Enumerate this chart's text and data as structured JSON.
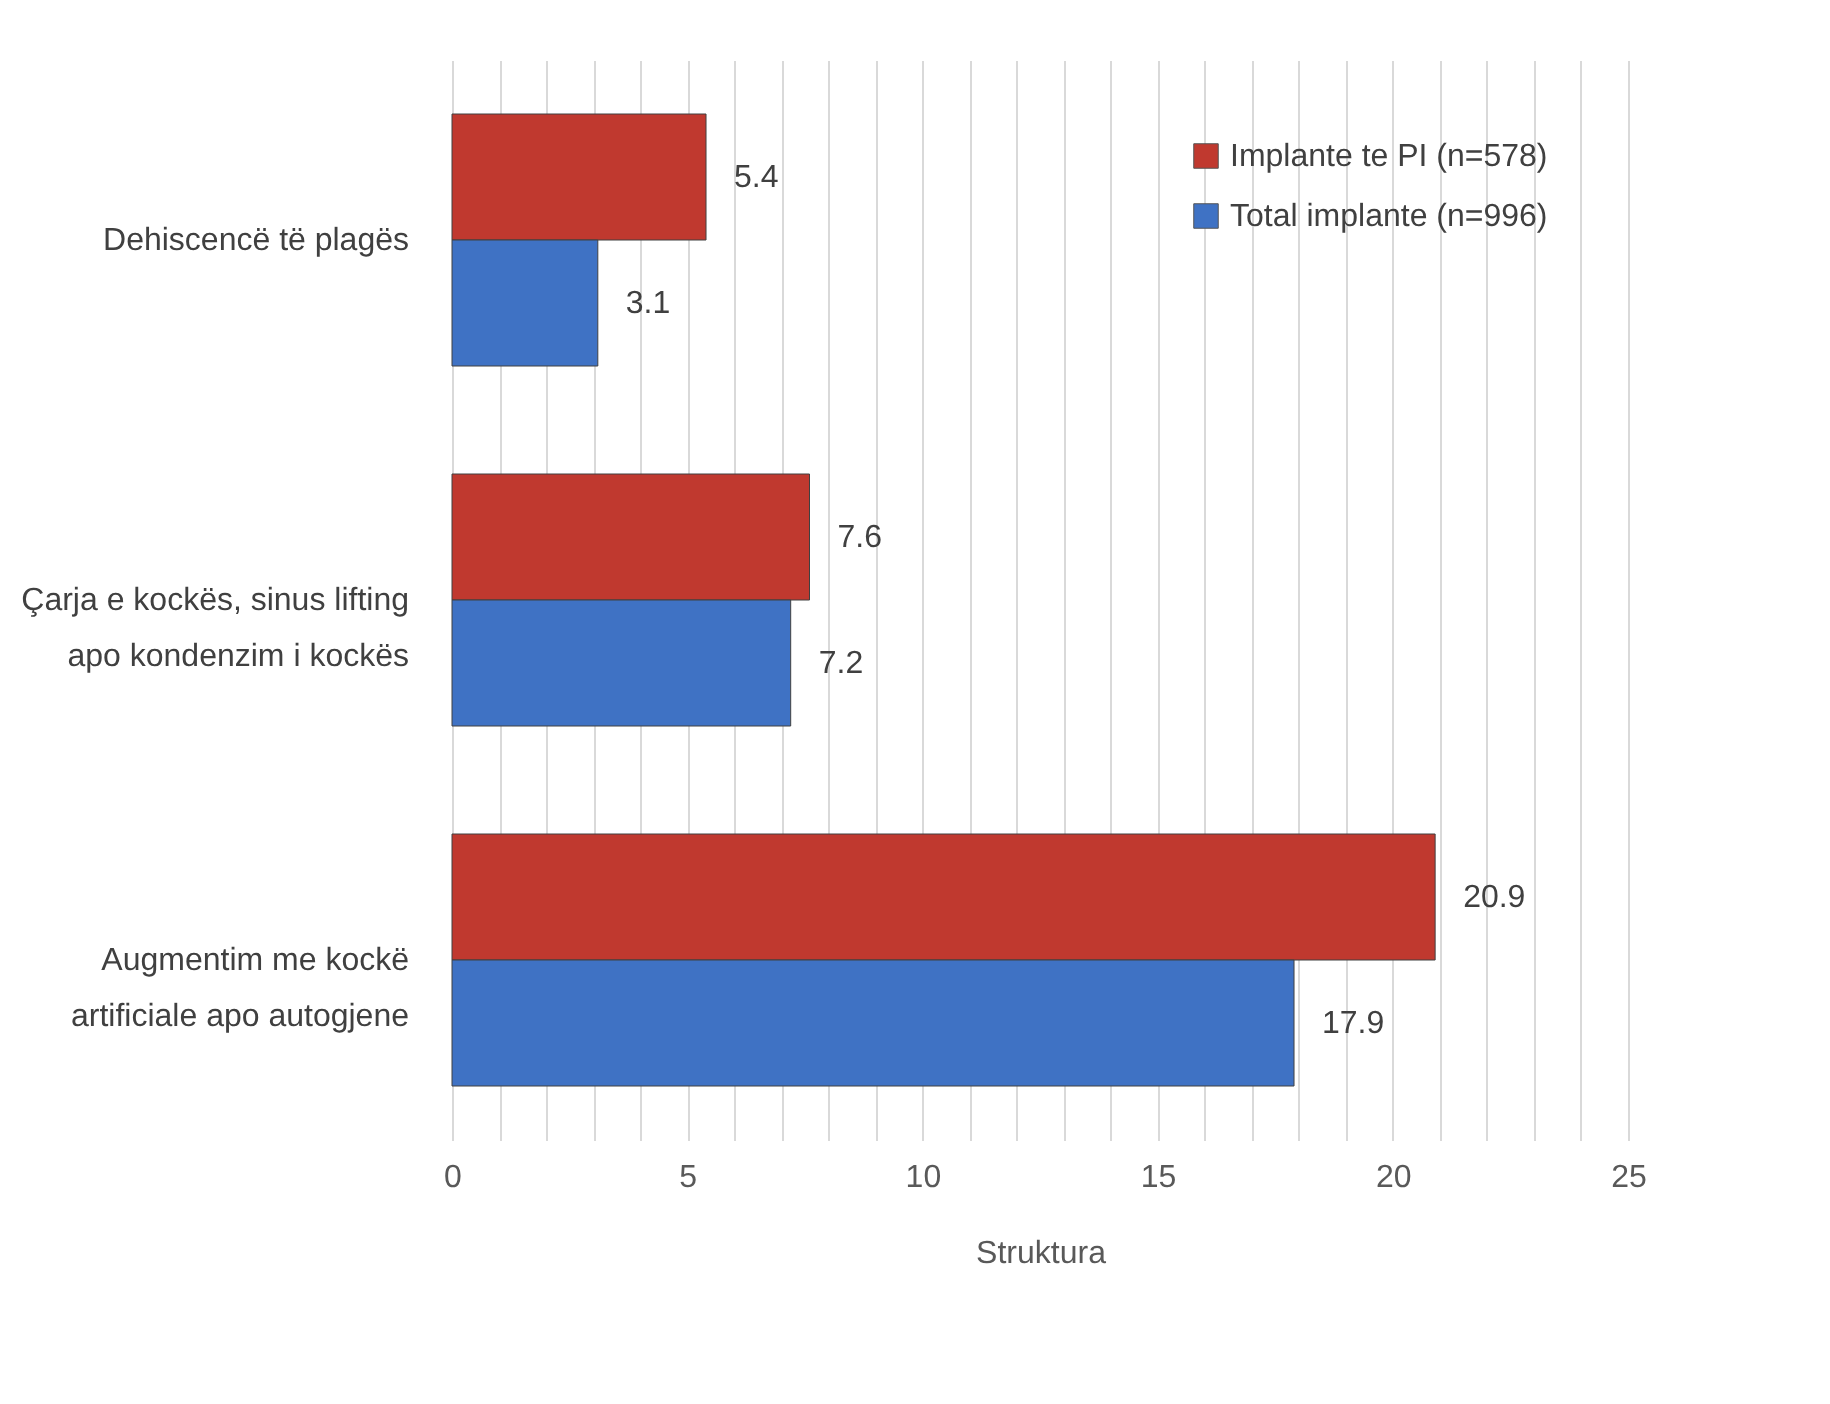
{
  "chart_data": {
    "type": "bar",
    "orientation": "horizontal",
    "xlabel": "Struktura",
    "categories": [
      "Dehiscencë të plagës",
      "Çarja e kockës, sinus lifting apo kondenzim i kockës",
      "Augmentim me kockë artificiale apo autogjene"
    ],
    "series": [
      {
        "name": "Implante te PI (n=578)",
        "color": "#c0392f",
        "values": [
          5.4,
          7.6,
          20.9
        ]
      },
      {
        "name": "Total implante (n=996)",
        "color": "#3f72c4",
        "values": [
          3.1,
          7.2,
          17.9
        ]
      }
    ],
    "xlim": [
      0,
      25
    ],
    "xticks": [
      0,
      {
        "value": 1,
        "label": null
      },
      {
        "value": 2,
        "label": null
      },
      {
        "value": 3,
        "label": null
      },
      {
        "value": 4,
        "label": null
      },
      5,
      {
        "value": 6,
        "label": null
      },
      {
        "value": 7,
        "label": null
      },
      {
        "value": 8,
        "label": null
      },
      {
        "value": 9,
        "label": null
      },
      10,
      {
        "value": 11,
        "label": null
      },
      {
        "value": 12,
        "label": null
      },
      {
        "value": 13,
        "label": null
      },
      {
        "value": 14,
        "label": null
      },
      15,
      {
        "value": 16,
        "label": null
      },
      {
        "value": 17,
        "label": null
      },
      {
        "value": 18,
        "label": null
      },
      {
        "value": 19,
        "label": null
      },
      20,
      {
        "value": 21,
        "label": null
      },
      {
        "value": 22,
        "label": null
      },
      {
        "value": 23,
        "label": null
      },
      {
        "value": 24,
        "label": null
      },
      25
    ],
    "grid": "x",
    "legend": "top right",
    "data_labels": true
  }
}
